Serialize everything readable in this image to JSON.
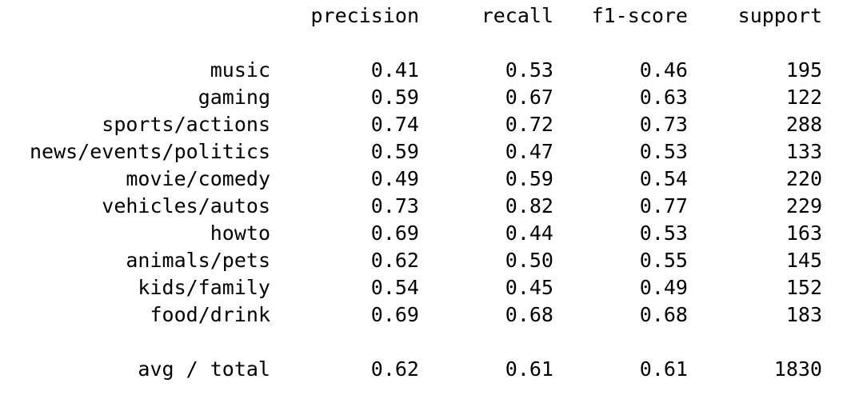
{
  "header": {
    "precision": "precision",
    "recall": "recall",
    "f1_score": "f1-score",
    "support": "support"
  },
  "rows": [
    {
      "label": "music",
      "precision": "0.41",
      "recall": "0.53",
      "f1": "0.46",
      "support": "195"
    },
    {
      "label": "gaming",
      "precision": "0.59",
      "recall": "0.67",
      "f1": "0.63",
      "support": "122"
    },
    {
      "label": "sports/actions",
      "precision": "0.74",
      "recall": "0.72",
      "f1": "0.73",
      "support": "288"
    },
    {
      "label": "news/events/politics",
      "precision": "0.59",
      "recall": "0.47",
      "f1": "0.53",
      "support": "133"
    },
    {
      "label": "movie/comedy",
      "precision": "0.49",
      "recall": "0.59",
      "f1": "0.54",
      "support": "220"
    },
    {
      "label": "vehicles/autos",
      "precision": "0.73",
      "recall": "0.82",
      "f1": "0.77",
      "support": "229"
    },
    {
      "label": "howto",
      "precision": "0.69",
      "recall": "0.44",
      "f1": "0.53",
      "support": "163"
    },
    {
      "label": "animals/pets",
      "precision": "0.62",
      "recall": "0.50",
      "f1": "0.55",
      "support": "145"
    },
    {
      "label": "kids/family",
      "precision": "0.54",
      "recall": "0.45",
      "f1": "0.49",
      "support": "152"
    },
    {
      "label": "food/drink",
      "precision": "0.69",
      "recall": "0.68",
      "f1": "0.68",
      "support": "183"
    }
  ],
  "total": {
    "label": "avg / total",
    "precision": "0.62",
    "recall": "0.61",
    "f1": "0.61",
    "support": "1830"
  }
}
